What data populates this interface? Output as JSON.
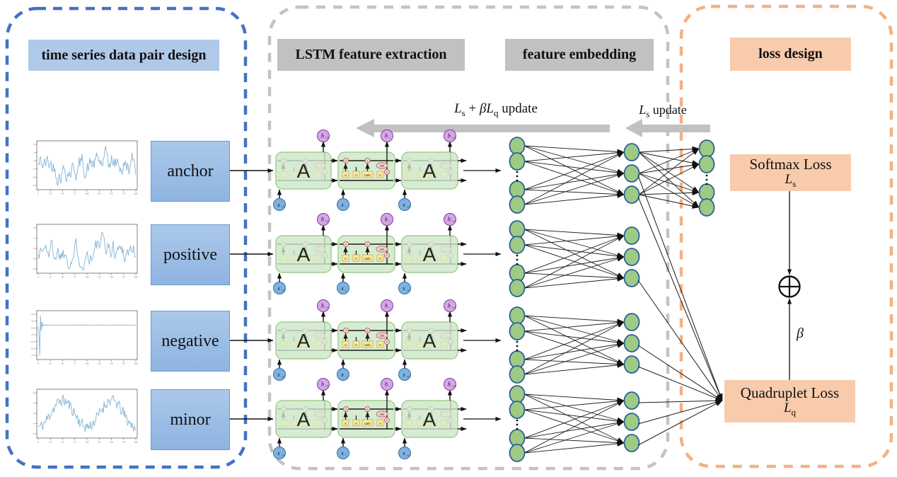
{
  "panels": {
    "pair_design": {
      "title": "time series data pair design"
    },
    "lstm": {
      "title": "LSTM feature extraction"
    },
    "embedding": {
      "title": "feature embedding"
    },
    "loss": {
      "title": "loss design"
    }
  },
  "pairs": [
    {
      "label": "anchor",
      "plot": {
        "pattern": "noisy",
        "seed": 42,
        "x_tick_labels": [
          "0",
          "25",
          "50",
          "75",
          "100",
          "125",
          "150",
          "175",
          "200"
        ],
        "y_tick_labels": [
          "2",
          "1",
          "0",
          "-1",
          "-2",
          "-3"
        ]
      }
    },
    {
      "label": "positive",
      "plot": {
        "pattern": "noisy",
        "seed": 1337,
        "x_tick_labels": [
          "0",
          "25",
          "50",
          "75",
          "100",
          "125",
          "150",
          "175",
          "200"
        ],
        "y_tick_labels": [
          "2",
          "1",
          "0",
          "-1",
          "-2"
        ]
      }
    },
    {
      "label": "negative",
      "plot": {
        "pattern": "flat-spike",
        "seed": 5,
        "x_tick_labels": [
          "0",
          "25",
          "50",
          "75",
          "100",
          "125",
          "150",
          "175",
          "200"
        ],
        "y_tick_labels": [
          "-4.0",
          "-4.5",
          "-5.0",
          "-5.5",
          "-6.0",
          "-6.5",
          "-7.0"
        ]
      }
    },
    {
      "label": "minor",
      "plot": {
        "pattern": "two-hump-wave",
        "seed": 11,
        "x_tick_labels": [
          "0",
          "25",
          "50",
          "75",
          "100",
          "125",
          "150",
          "175",
          "200"
        ],
        "y_tick_labels": [
          "4",
          "2",
          "0",
          "-2",
          "-4"
        ]
      }
    }
  ],
  "update_arrows": [
    {
      "l1": "L",
      "s1": "s",
      "plus": " + ",
      "beta": "β",
      "l2": "L",
      "s2": "q",
      "suffix": "  update"
    },
    {
      "l1": "L",
      "s1": "s",
      "suffix": "  update"
    }
  ],
  "lstm": {
    "cell_label": "A",
    "gate_labels": [
      "σ",
      "σ",
      "tanh",
      "σ"
    ],
    "op_labels": [
      "×",
      "+",
      "×"
    ],
    "tanh_op_label": "tanh",
    "h_label": "h",
    "x_label": "x",
    "h_subscripts": [
      "t-1",
      "t",
      "t+1"
    ],
    "x_subscripts": [
      "t-1",
      "t",
      "t+1"
    ]
  },
  "loss": {
    "softmax": {
      "title": "Softmax Loss",
      "sym_main": "L",
      "sym_sub": "s"
    },
    "quadruplet": {
      "title": "Quadruplet Loss",
      "sym_main": "L",
      "sym_sub": "q"
    },
    "combine_symbol": "⊕",
    "beta": "β"
  },
  "colors": {
    "panel_blue_border": "#4472c4",
    "panel_gray_border": "#c3c3c3",
    "panel_orange_border": "#f4b183",
    "header_blue": "#b0c9e9",
    "header_gray": "#c1c1c1",
    "header_orange": "#f8cbad",
    "pair_box_blue": "#9bbde5",
    "lstm_box_green": "#d6ecd2",
    "lstm_box_green_border": "#94c47e",
    "gate_yellow": "#ffe996",
    "op_pink": "#f8cecc",
    "h_circle_purple": "#d5a6e8",
    "x_circle_blue": "#7fb1e0",
    "embedding_node_green": "#9dcb83",
    "embedding_node_border": "#2e6097",
    "update_arrow_gray": "#c1c1c1",
    "plot_line_blue": "#82b4d6",
    "loss_box_orange": "#f8cbad"
  }
}
